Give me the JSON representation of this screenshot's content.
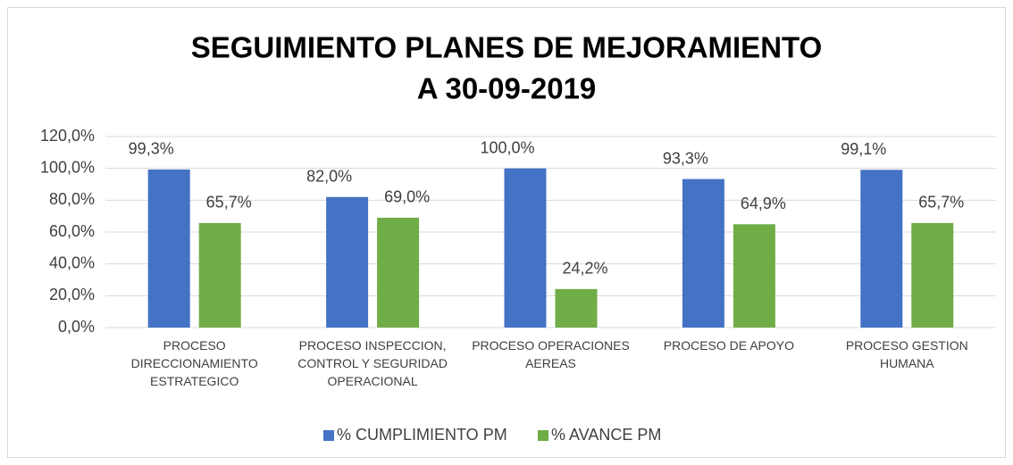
{
  "chart_data": {
    "type": "bar",
    "title": [
      "SEGUIMIENTO PLANES DE MEJORAMIENTO",
      "A 30-09-2019"
    ],
    "categories": [
      "PROCESO DIRECCIONAMIENTO ESTRATEGICO",
      "PROCESO INSPECCION, CONTROL Y SEGURIDAD OPERACIONAL",
      "PROCESO OPERACIONES AEREAS",
      "PROCESO DE APOYO",
      "PROCESO GESTION HUMANA"
    ],
    "series": [
      {
        "name": "% CUMPLIMIENTO PM",
        "color": "#4472c4",
        "values": [
          99.3,
          82.0,
          100.0,
          93.3,
          99.1
        ],
        "value_labels": [
          "99,3%",
          "82,0%",
          "100,0%",
          "93,3%",
          "99,1%"
        ]
      },
      {
        "name": "% AVANCE PM",
        "color": "#70ad47",
        "values": [
          65.7,
          69.0,
          24.2,
          64.9,
          65.7
        ],
        "value_labels": [
          "65,7%",
          "69,0%",
          "24,2%",
          "64,9%",
          "65,7%"
        ]
      }
    ],
    "ylim": [
      0,
      120
    ],
    "yticks": [
      {
        "value": 0,
        "label": "0,0%"
      },
      {
        "value": 20,
        "label": "20,0%"
      },
      {
        "value": 40,
        "label": "40,0%"
      },
      {
        "value": 60,
        "label": "60,0%"
      },
      {
        "value": 80,
        "label": "80,0%"
      },
      {
        "value": 100,
        "label": "100,0%"
      },
      {
        "value": 120,
        "label": "120,0%"
      }
    ],
    "grid": true,
    "legend": "bottom"
  }
}
